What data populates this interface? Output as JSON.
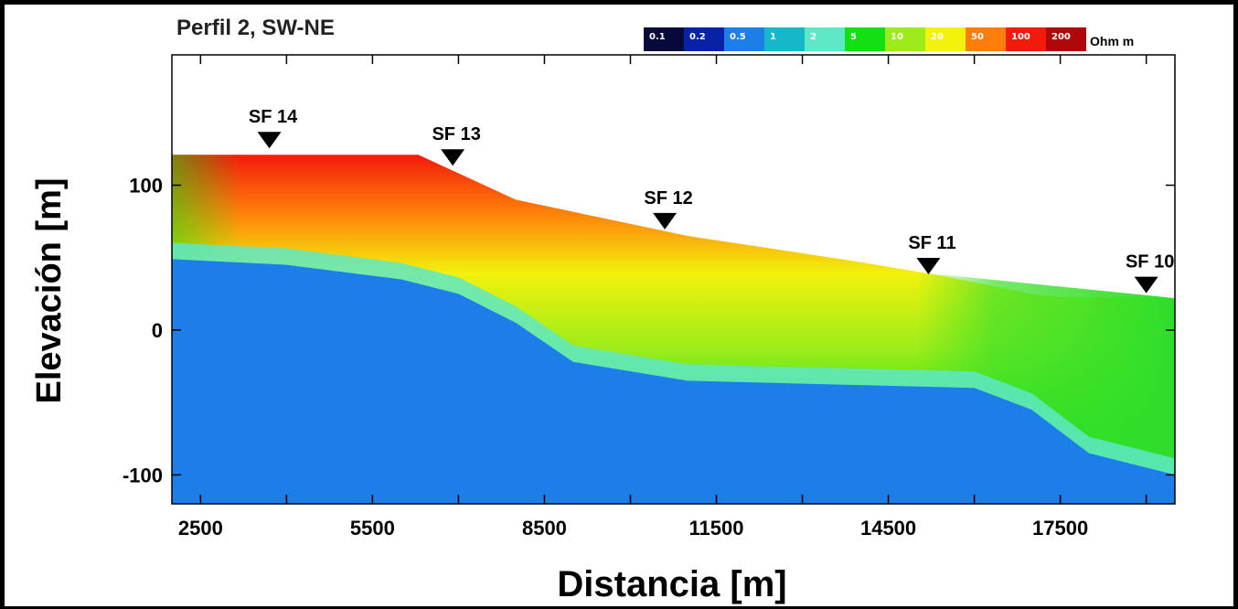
{
  "chart_data": {
    "type": "heatmap",
    "title": "Perfil 2, SW-NE",
    "xlabel": "Distancia [m]",
    "ylabel": "Elevación [m]",
    "xlim": [
      2000,
      19500
    ],
    "ylim": [
      -120,
      190
    ],
    "x_ticks": [
      {
        "value": 2500,
        "label": "2500"
      },
      {
        "value": 5500,
        "label": "5500"
      },
      {
        "value": 8500,
        "label": "8500"
      },
      {
        "value": 11500,
        "label": "11500"
      },
      {
        "value": 14500,
        "label": "14500"
      },
      {
        "value": 17500,
        "label": "17500"
      }
    ],
    "y_ticks": [
      {
        "value": 100,
        "label": "100"
      },
      {
        "value": 0,
        "label": "0"
      },
      {
        "value": -100,
        "label": "-100"
      }
    ],
    "colorbar": {
      "unit": "Ohm m",
      "classes": [
        {
          "label": "0.1",
          "color": "#06093a"
        },
        {
          "label": "0.2",
          "color": "#0722a6"
        },
        {
          "label": "0.5",
          "color": "#1c7ee8"
        },
        {
          "label": "1",
          "color": "#14b8c9"
        },
        {
          "label": "2",
          "color": "#5ee8c6"
        },
        {
          "label": "5",
          "color": "#12e012"
        },
        {
          "label": "10",
          "color": "#9bec1a"
        },
        {
          "label": "20",
          "color": "#f2f20c"
        },
        {
          "label": "50",
          "color": "#ff7d0a"
        },
        {
          "label": "100",
          "color": "#f21a0a"
        },
        {
          "label": "200",
          "color": "#b0080a"
        }
      ]
    },
    "surface": {
      "x": [
        2000,
        6300,
        8000,
        11000,
        14000,
        15500,
        17000,
        17500,
        19500
      ],
      "y": [
        121,
        121,
        90,
        65,
        47,
        37,
        25,
        23,
        22
      ]
    },
    "conductive_layer_top": {
      "x": [
        2000,
        4000,
        6000,
        7000,
        8000,
        9000,
        11000,
        14000,
        16000,
        17000,
        18000,
        19500
      ],
      "y": [
        49,
        45,
        35,
        25,
        5,
        -22,
        -35,
        -38,
        -40,
        -55,
        -85,
        -100
      ]
    },
    "wells": [
      {
        "label": "SF 14",
        "x": 3700,
        "y": 128
      },
      {
        "label": "SF 13",
        "x": 6900,
        "y": 116
      },
      {
        "label": "SF 12",
        "x": 10600,
        "y": 72
      },
      {
        "label": "SF 11",
        "x": 15200,
        "y": 41
      },
      {
        "label": "SF 10",
        "x": 19000,
        "y": 28
      }
    ]
  }
}
